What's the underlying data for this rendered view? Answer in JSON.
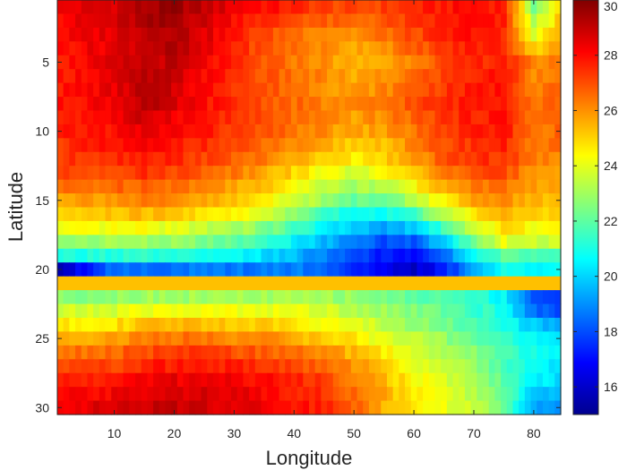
{
  "chart_data": {
    "type": "heatmap",
    "title": "",
    "xlabel": "Longitude",
    "ylabel": "Latitude",
    "xlim": [
      0.5,
      84.5
    ],
    "ylim": [
      0.5,
      30.5
    ],
    "y_reversed": true,
    "xticks": [
      10,
      20,
      30,
      40,
      50,
      60,
      70,
      80
    ],
    "yticks": [
      5,
      10,
      15,
      20,
      25,
      30
    ],
    "grid": false,
    "colormap": "jet",
    "colorbar": {
      "location": "right",
      "clim": [
        15,
        30
      ],
      "ticks": [
        16,
        18,
        20,
        22,
        24,
        26,
        28,
        30
      ]
    },
    "field_description": {
      "n_cols": 84,
      "n_rows": 30,
      "anchor_rows_latitude": [
        1,
        3,
        5,
        8,
        10,
        12,
        13,
        14,
        15,
        16,
        17,
        18,
        19,
        20,
        21,
        22,
        23,
        24,
        25,
        26,
        27,
        28,
        29,
        30
      ],
      "anchor_lon": [
        1,
        10,
        15,
        20,
        25,
        30,
        35,
        40,
        45,
        50,
        55,
        60,
        65,
        70,
        75,
        80,
        84
      ],
      "anchor_values": [
        [
          28.3,
          28.8,
          29.3,
          29.6,
          29.0,
          28.4,
          28.0,
          27.6,
          27.2,
          27.0,
          27.2,
          27.5,
          27.8,
          28.0,
          27.8,
          22.5,
          24.5
        ],
        [
          28.0,
          28.6,
          29.2,
          29.4,
          28.6,
          27.8,
          27.0,
          26.6,
          26.2,
          26.0,
          26.5,
          27.0,
          27.6,
          28.0,
          27.4,
          24.0,
          25.5
        ],
        [
          27.8,
          28.5,
          29.0,
          29.0,
          28.2,
          27.5,
          26.8,
          26.4,
          26.0,
          25.4,
          25.6,
          26.4,
          27.0,
          27.5,
          27.8,
          26.0,
          26.5
        ],
        [
          27.8,
          28.4,
          29.2,
          28.6,
          28.0,
          27.5,
          27.0,
          26.6,
          26.2,
          26.0,
          26.4,
          27.0,
          27.5,
          27.8,
          28.0,
          26.5,
          26.8
        ],
        [
          27.6,
          28.0,
          28.4,
          28.2,
          27.8,
          27.2,
          26.8,
          26.4,
          26.0,
          25.6,
          25.8,
          26.4,
          27.2,
          27.6,
          27.8,
          26.4,
          26.6
        ],
        [
          27.2,
          27.6,
          27.8,
          27.6,
          27.2,
          26.8,
          26.2,
          25.6,
          25.0,
          24.6,
          25.0,
          25.8,
          26.8,
          27.4,
          27.4,
          26.2,
          26.2
        ],
        [
          27.0,
          27.2,
          27.4,
          27.2,
          26.8,
          26.4,
          25.8,
          25.0,
          24.2,
          23.8,
          24.2,
          25.2,
          26.2,
          27.0,
          27.0,
          26.0,
          26.0
        ],
        [
          26.4,
          26.6,
          26.8,
          26.6,
          26.2,
          25.8,
          25.2,
          24.5,
          23.6,
          23.0,
          23.4,
          24.4,
          25.6,
          26.4,
          26.4,
          25.8,
          25.8
        ],
        [
          25.8,
          26.0,
          26.2,
          26.0,
          25.6,
          25.2,
          24.6,
          23.8,
          22.8,
          22.2,
          22.4,
          23.2,
          24.6,
          25.8,
          26.0,
          25.4,
          25.4
        ],
        [
          25.0,
          25.2,
          25.4,
          25.2,
          24.8,
          24.4,
          23.8,
          22.8,
          21.6,
          20.8,
          20.8,
          21.6,
          23.2,
          24.8,
          25.4,
          25.0,
          25.0
        ],
        [
          24.0,
          24.2,
          24.2,
          24.0,
          23.6,
          23.2,
          22.6,
          21.6,
          20.6,
          19.8,
          19.2,
          19.8,
          21.6,
          23.6,
          24.8,
          24.4,
          24.4
        ],
        [
          22.8,
          23.0,
          23.0,
          22.8,
          22.4,
          22.0,
          21.4,
          20.6,
          19.6,
          18.8,
          18.0,
          18.2,
          20.0,
          22.4,
          24.0,
          23.6,
          23.6
        ],
        [
          21.0,
          21.2,
          21.2,
          21.0,
          20.8,
          20.6,
          20.2,
          19.6,
          18.8,
          18.0,
          17.2,
          16.8,
          18.4,
          20.8,
          22.0,
          21.8,
          21.8
        ],
        [
          16.0,
          18.6,
          18.6,
          18.6,
          18.6,
          18.6,
          18.8,
          18.8,
          18.4,
          17.6,
          16.6,
          16.0,
          17.2,
          19.4,
          20.8,
          20.8,
          20.8
        ],
        [
          25.3,
          25.3,
          25.3,
          25.3,
          25.3,
          25.3,
          25.3,
          25.3,
          25.3,
          25.3,
          25.3,
          25.3,
          25.3,
          25.3,
          25.3,
          25.3,
          25.3
        ],
        [
          22.6,
          22.8,
          23.0,
          23.0,
          23.0,
          23.0,
          23.0,
          23.0,
          23.0,
          22.8,
          22.4,
          22.0,
          21.8,
          21.4,
          20.6,
          18.2,
          17.6
        ],
        [
          23.6,
          23.8,
          24.2,
          24.2,
          24.2,
          24.2,
          24.2,
          24.0,
          23.8,
          23.4,
          23.0,
          22.6,
          22.0,
          21.6,
          20.8,
          18.6,
          18.0
        ],
        [
          24.6,
          24.8,
          25.2,
          25.4,
          25.4,
          25.2,
          25.0,
          24.8,
          24.4,
          24.0,
          23.4,
          22.8,
          22.4,
          21.8,
          21.0,
          19.8,
          19.4
        ],
        [
          25.6,
          25.8,
          26.2,
          26.4,
          26.4,
          26.2,
          26.0,
          25.6,
          25.2,
          24.6,
          24.0,
          23.4,
          22.8,
          22.2,
          21.4,
          20.6,
          20.4
        ],
        [
          26.4,
          26.6,
          27.0,
          27.2,
          27.2,
          27.0,
          26.8,
          26.4,
          26.0,
          25.4,
          24.6,
          23.8,
          23.2,
          22.6,
          21.8,
          20.8,
          20.6
        ],
        [
          27.0,
          27.2,
          27.6,
          27.8,
          27.8,
          27.6,
          27.4,
          27.0,
          26.6,
          26.0,
          25.0,
          24.2,
          23.6,
          22.8,
          21.8,
          20.6,
          20.4
        ],
        [
          27.6,
          27.8,
          28.2,
          28.4,
          28.4,
          28.2,
          28.0,
          27.6,
          27.2,
          26.4,
          25.4,
          24.4,
          23.8,
          23.0,
          22.0,
          20.4,
          20.2
        ],
        [
          28.0,
          28.2,
          28.6,
          28.8,
          28.6,
          28.4,
          28.2,
          27.8,
          27.4,
          26.6,
          25.6,
          24.6,
          24.0,
          23.2,
          22.2,
          19.8,
          19.6
        ],
        [
          28.4,
          28.6,
          28.8,
          29.0,
          28.8,
          28.6,
          28.4,
          28.0,
          27.6,
          26.8,
          25.6,
          24.8,
          24.2,
          23.4,
          22.4,
          19.4,
          19.2
        ]
      ]
    }
  }
}
